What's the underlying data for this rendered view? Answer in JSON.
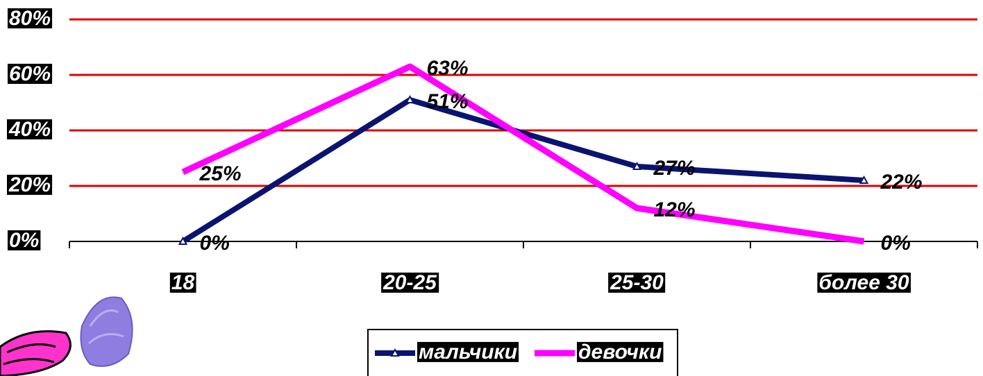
{
  "chart_data": {
    "type": "line",
    "categories": [
      "18",
      "20-25",
      "25-30",
      "более 30"
    ],
    "series": [
      {
        "name": "мальчики",
        "values": [
          0,
          51,
          27,
          22
        ],
        "labels": [
          "0%",
          "51%",
          "27%",
          "22%"
        ]
      },
      {
        "name": "девочки",
        "values": [
          25,
          63,
          12,
          0
        ],
        "labels": [
          "25%",
          "63%",
          "12%",
          "0%"
        ]
      }
    ],
    "ylim": [
      0,
      80
    ],
    "yticks": [
      0,
      20,
      40,
      60,
      80
    ],
    "ytick_labels": [
      "0%",
      "20%",
      "40%",
      "60%",
      "80%"
    ],
    "grid": true,
    "legend_position": "bottom"
  },
  "colors": {
    "boys": "#0a1470",
    "girls": "#ff00ff",
    "grid": "#e00000",
    "label_bg": "#000000"
  },
  "decorations": {
    "bottom_left": "butterfly-icon"
  }
}
